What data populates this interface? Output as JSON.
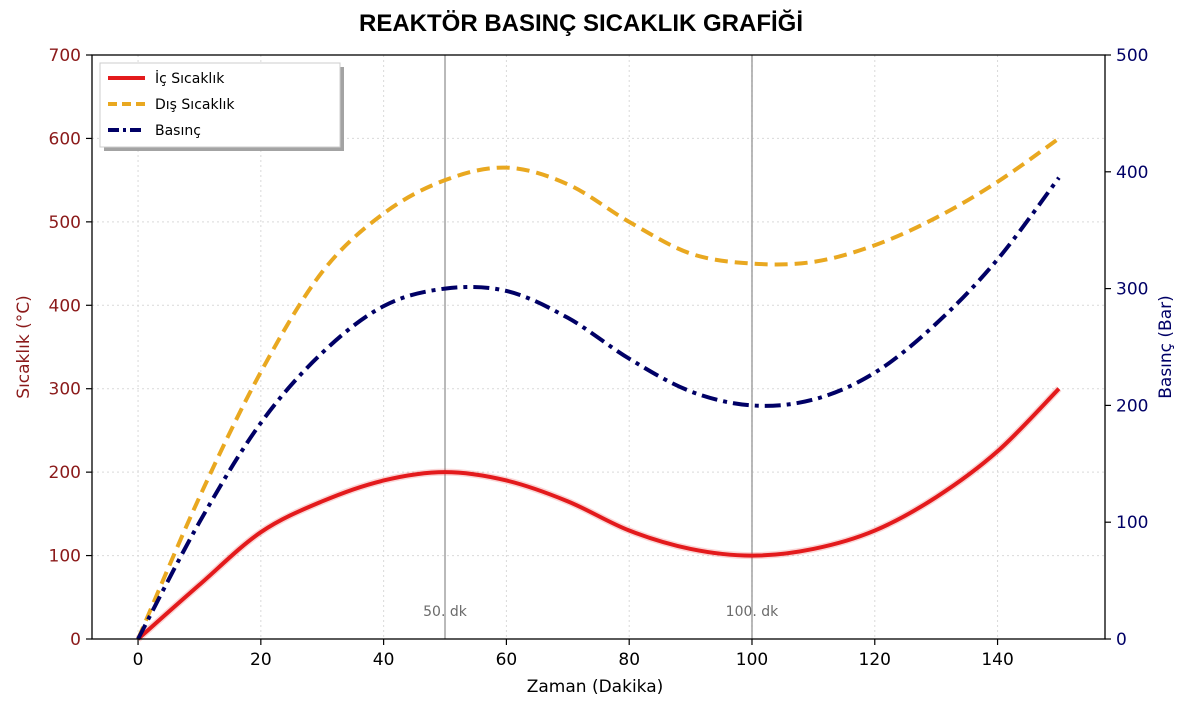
{
  "chart_data": {
    "type": "line",
    "title": "REAKTÖR BASINÇ SICAKLIK GRAFİĞİ",
    "xlabel": "Zaman (Dakika)",
    "ylabel_left": "Sıcaklık (°C)",
    "ylabel_right": "Basınç (Bar)",
    "xlim": [
      -7.5,
      157.5
    ],
    "ylim_left": [
      0,
      700
    ],
    "ylim_right": [
      0,
      500
    ],
    "xticks": [
      0,
      20,
      40,
      60,
      80,
      100,
      120,
      140
    ],
    "yticks_left": [
      0,
      100,
      200,
      300,
      400,
      500,
      600,
      700
    ],
    "yticks_right": [
      0,
      100,
      200,
      300,
      400,
      500
    ],
    "grid": true,
    "legend_position": "top-left",
    "annotations": [
      {
        "x": 50,
        "label": "50. dk"
      },
      {
        "x": 100,
        "label": "100. dk"
      }
    ],
    "series": [
      {
        "name": "İç Sıcaklık",
        "axis": "left",
        "style": "solid",
        "color": "#e31a1c",
        "x": [
          0,
          10,
          20,
          30,
          40,
          50,
          60,
          70,
          80,
          90,
          100,
          110,
          120,
          130,
          140,
          150
        ],
        "y": [
          0,
          65,
          128,
          165,
          190,
          200,
          190,
          165,
          130,
          108,
          100,
          108,
          130,
          170,
          225,
          300
        ]
      },
      {
        "name": "Dış Sıcaklık",
        "axis": "left",
        "style": "dashed",
        "color": "#e9a820",
        "x": [
          0,
          10,
          20,
          30,
          40,
          50,
          60,
          70,
          80,
          90,
          100,
          110,
          120,
          130,
          140,
          150
        ],
        "y": [
          0,
          170,
          320,
          440,
          510,
          550,
          565,
          545,
          500,
          462,
          450,
          452,
          472,
          505,
          548,
          600
        ]
      },
      {
        "name": "Basınç",
        "axis": "right",
        "style": "dashdot",
        "color": "#000066",
        "x": [
          0,
          10,
          20,
          30,
          40,
          50,
          60,
          70,
          80,
          90,
          100,
          110,
          120,
          130,
          140,
          150
        ],
        "y": [
          0,
          100,
          185,
          245,
          285,
          300,
          298,
          275,
          240,
          212,
          200,
          205,
          228,
          270,
          325,
          395
        ]
      }
    ]
  }
}
